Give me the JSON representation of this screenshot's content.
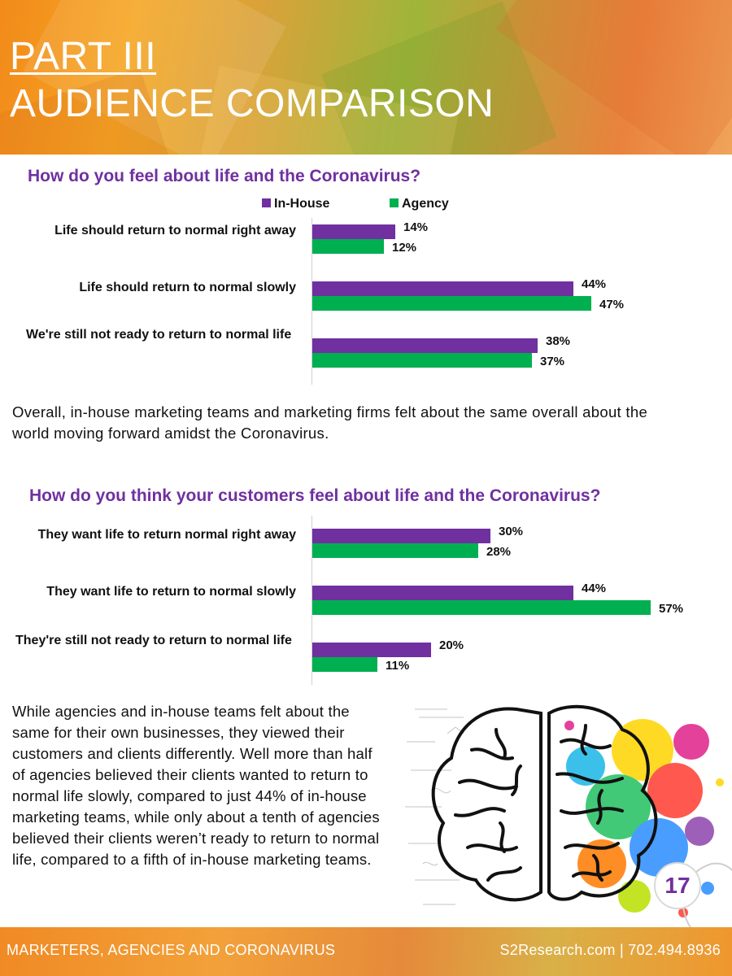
{
  "header": {
    "part": "PART III",
    "title": "AUDIENCE COMPARISON"
  },
  "legend": {
    "inhouse": "In-House",
    "agency": "Agency"
  },
  "colors": {
    "inhouse": "#7030a0",
    "agency": "#00b050",
    "accent": "#7030a0"
  },
  "chart_data": [
    {
      "type": "bar",
      "orientation": "horizontal",
      "title": "How do you feel about life and the Coronavirus?",
      "categories": [
        "Life should return to normal right away",
        "Life should return to normal slowly",
        "We're still not ready to return to normal life"
      ],
      "series": [
        {
          "name": "In-House",
          "values": [
            14,
            44,
            38
          ],
          "labels": [
            "14%",
            "44%",
            "38%"
          ]
        },
        {
          "name": "Agency",
          "values": [
            12,
            47,
            37
          ],
          "labels": [
            "12%",
            "47%",
            "37%"
          ]
        }
      ],
      "unit": "%",
      "xlim": [
        0,
        60
      ]
    },
    {
      "type": "bar",
      "orientation": "horizontal",
      "title": "How do you think your customers feel about life and the Coronavirus?",
      "categories": [
        "They want life to return normal right away",
        "They want life to return to normal slowly",
        "They're still not ready to return to normal life"
      ],
      "series": [
        {
          "name": "In-House",
          "values": [
            30,
            44,
            20
          ],
          "labels": [
            "30%",
            "44%",
            "20%"
          ]
        },
        {
          "name": "Agency",
          "values": [
            28,
            57,
            11
          ],
          "labels": [
            "28%",
            "57%",
            "11%"
          ]
        }
      ],
      "unit": "%",
      "xlim": [
        0,
        60
      ]
    }
  ],
  "paragraphs": {
    "p1": "Overall, in-house marketing teams and marketing firms felt about the same overall about the world moving forward amidst the Coronavirus.",
    "p2": "While agencies and in-house teams felt about the same for their own businesses, they viewed their customers and clients differently. Well more than half of agencies believed their clients wanted to return to normal life slowly, compared to just 44% of in-house marketing teams, while only about a tenth of agencies believed their clients weren’t ready to return to normal life, compared to a fifth of in-house marketing teams."
  },
  "page_number": "17",
  "footer": {
    "left": "MARKETERS, AGENCIES AND CORONAVIRUS",
    "right": "S2Research.com | 702.494.8936"
  }
}
